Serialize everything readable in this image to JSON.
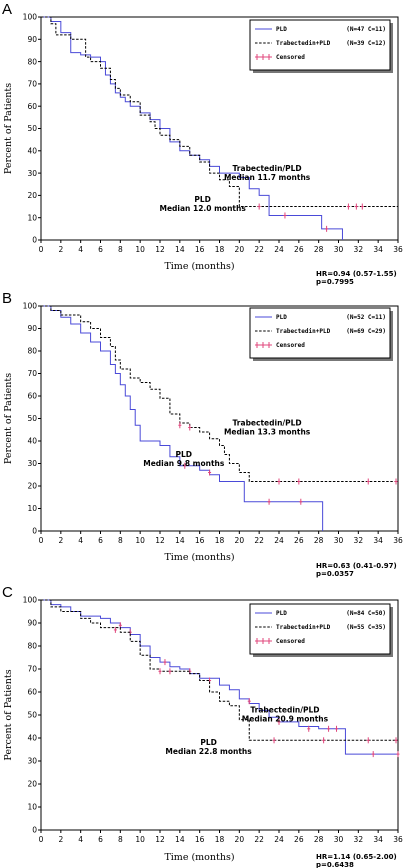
{
  "chart_data": [
    {
      "type": "line",
      "panel_label": "A",
      "xlabel": "Time (months)",
      "ylabel": "Percent of Patients",
      "xlim": [
        0,
        36
      ],
      "ylim": [
        0,
        100
      ],
      "xticks": [
        0,
        2,
        4,
        6,
        8,
        10,
        12,
        14,
        16,
        18,
        20,
        22,
        24,
        26,
        28,
        30,
        32,
        34,
        36
      ],
      "yticks": [
        0,
        10,
        20,
        30,
        40,
        50,
        60,
        70,
        80,
        90,
        100
      ],
      "legend": {
        "position": "top-right",
        "entries": [
          {
            "label": "PLD",
            "counts": "(N=47 C=11)"
          },
          {
            "label": "Trabectedin+PLD",
            "counts": "(N=39 C=12)"
          },
          {
            "label": "Censored",
            "counts": ""
          }
        ]
      },
      "annotations": [
        {
          "lines": [
            "Trabectedin/PLD",
            "Median 11.7 months"
          ],
          "x": 22.8,
          "y": 31
        },
        {
          "lines": [
            "PLD",
            "Median 12.0 months"
          ],
          "x": 16.3,
          "y": 17
        }
      ],
      "stats": [
        "HR=0.94 (0.57-1.55)",
        "p=0.7995"
      ],
      "series": [
        {
          "name": "PLD",
          "color": "#4a4ad8",
          "dash": false,
          "x": [
            0,
            1,
            2,
            3,
            4,
            5,
            6,
            6.5,
            7,
            7.5,
            8,
            8.5,
            9,
            10,
            11,
            12,
            13,
            14,
            15,
            16,
            17,
            18,
            20,
            21,
            22,
            23,
            26,
            28.3,
            30.4
          ],
          "y": [
            100,
            98,
            93,
            84,
            83,
            82,
            80,
            74,
            70,
            66,
            64,
            62,
            60,
            57,
            54,
            50,
            44,
            40,
            38,
            36,
            33,
            30,
            28,
            23,
            20,
            11,
            11,
            5,
            0
          ],
          "censors": [
            [
              24.6,
              11
            ],
            [
              28.8,
              5
            ]
          ]
        },
        {
          "name": "Trabectedin+PLD",
          "color": "#000000",
          "dash": true,
          "x": [
            0,
            1,
            1.5,
            3,
            4.5,
            5,
            6,
            7,
            7.5,
            8,
            9,
            10,
            11,
            11.5,
            12,
            13,
            14,
            15,
            16,
            17,
            18,
            19,
            20,
            36
          ],
          "y": [
            100,
            97,
            92,
            90,
            82,
            80,
            77,
            72,
            68,
            65,
            62,
            56,
            53,
            50,
            47,
            45,
            42,
            38,
            35,
            30,
            27,
            24,
            15,
            15
          ],
          "censors": [
            [
              22,
              15
            ],
            [
              31,
              15
            ],
            [
              31.8,
              15
            ],
            [
              32.4,
              15
            ]
          ]
        }
      ]
    },
    {
      "type": "line",
      "panel_label": "B",
      "xlabel": "Time (months)",
      "ylabel": "Percent of Patients",
      "xlim": [
        0,
        36
      ],
      "ylim": [
        0,
        100
      ],
      "xticks": [
        0,
        2,
        4,
        6,
        8,
        10,
        12,
        14,
        16,
        18,
        20,
        22,
        24,
        26,
        28,
        30,
        32,
        34,
        36
      ],
      "yticks": [
        0,
        10,
        20,
        30,
        40,
        50,
        60,
        70,
        80,
        90,
        100
      ],
      "legend": {
        "position": "top-right",
        "entries": [
          {
            "label": "PLD",
            "counts": "(N=52 C=11)"
          },
          {
            "label": "Trabectedin+PLD",
            "counts": "(N=69 C=29)"
          },
          {
            "label": "Censored",
            "counts": ""
          }
        ]
      },
      "annotations": [
        {
          "lines": [
            "Trabectedin/PLD",
            "Median 13.3 months"
          ],
          "x": 22.8,
          "y": 47
        },
        {
          "lines": [
            "PLD",
            "Median 9.8 months"
          ],
          "x": 14.4,
          "y": 33
        }
      ],
      "stats": [
        "HR=0.63 (0.41-0.97)",
        "p=0.0357"
      ],
      "series": [
        {
          "name": "PLD",
          "color": "#4a4ad8",
          "dash": false,
          "x": [
            0,
            1,
            2,
            3,
            4,
            5,
            6,
            7,
            7.5,
            8,
            8.5,
            9,
            9.5,
            10,
            12,
            13,
            14,
            16,
            17,
            18,
            20,
            20.5,
            28.2,
            28.4
          ],
          "y": [
            100,
            98,
            95,
            92,
            88,
            84,
            80,
            74,
            70,
            65,
            60,
            54,
            47,
            40,
            38,
            33,
            29,
            27,
            25,
            22,
            22,
            13,
            13,
            0
          ],
          "censors": [
            [
              14.5,
              29
            ],
            [
              17,
              26
            ],
            [
              23,
              13
            ],
            [
              26.2,
              13
            ]
          ]
        },
        {
          "name": "Trabectedin+PLD",
          "color": "#000000",
          "dash": true,
          "x": [
            0,
            1,
            2,
            4,
            5,
            6,
            7,
            7.5,
            8,
            9,
            10,
            11,
            12,
            13,
            14,
            15,
            16,
            17,
            18,
            18.5,
            19,
            20,
            21,
            36
          ],
          "y": [
            100,
            98,
            96,
            93,
            90,
            86,
            82,
            76,
            72,
            68,
            66,
            63,
            59,
            52,
            48,
            46,
            44,
            41,
            38,
            34,
            30,
            26,
            22,
            22
          ],
          "censors": [
            [
              14,
              47
            ],
            [
              15,
              46
            ],
            [
              24,
              22
            ],
            [
              26,
              22
            ],
            [
              33,
              22
            ],
            [
              35.8,
              22
            ]
          ]
        }
      ]
    },
    {
      "type": "line",
      "panel_label": "C",
      "xlabel": "Time (months)",
      "ylabel": "Percent of Patients",
      "xlim": [
        0,
        36
      ],
      "ylim": [
        0,
        100
      ],
      "xticks": [
        0,
        2,
        4,
        6,
        8,
        10,
        12,
        14,
        16,
        18,
        20,
        22,
        24,
        26,
        28,
        30,
        32,
        34,
        36
      ],
      "yticks": [
        0,
        10,
        20,
        30,
        40,
        50,
        60,
        70,
        80,
        90,
        100
      ],
      "legend": {
        "position": "top-right",
        "entries": [
          {
            "label": "PLD",
            "counts": "(N=84 C=50)"
          },
          {
            "label": "Trabectedin+PLD",
            "counts": "(N=55 C=35)"
          },
          {
            "label": "Censored",
            "counts": ""
          }
        ]
      },
      "annotations": [
        {
          "lines": [
            "Trabectedin/PLD",
            "Median 20.9 months"
          ],
          "x": 24.6,
          "y": 51
        },
        {
          "lines": [
            "PLD",
            "Median 22.8 months"
          ],
          "x": 16.9,
          "y": 37
        }
      ],
      "stats": [
        "HR=1.14 (0.65-2.00)",
        "p=0.6438"
      ],
      "series": [
        {
          "name": "PLD",
          "color": "#4a4ad8",
          "dash": false,
          "x": [
            0,
            1,
            2,
            3,
            4,
            6,
            7,
            8,
            9,
            10,
            11,
            12,
            13,
            14,
            15,
            16,
            18,
            19,
            20,
            21,
            22,
            23,
            24,
            26,
            28,
            30,
            30.7,
            36
          ],
          "y": [
            100,
            98,
            97,
            95,
            93,
            92,
            90,
            88,
            85,
            80,
            75,
            73,
            71,
            70,
            68,
            66,
            63,
            61,
            57,
            55,
            52,
            49,
            47,
            45,
            44,
            44,
            33,
            33
          ],
          "censors": [
            [
              8,
              89
            ],
            [
              9,
              86
            ],
            [
              12.5,
              73
            ],
            [
              15,
              69
            ],
            [
              17,
              65
            ],
            [
              21,
              56
            ],
            [
              24,
              47
            ],
            [
              27,
              44
            ],
            [
              29,
              44
            ],
            [
              29.8,
              44
            ],
            [
              33.5,
              33
            ],
            [
              36,
              33
            ]
          ]
        },
        {
          "name": "Trabectedin+PLD",
          "color": "#000000",
          "dash": true,
          "x": [
            0,
            1,
            2,
            4,
            5,
            6,
            8,
            9,
            10,
            11,
            12,
            13,
            14,
            15,
            16,
            17,
            18,
            19,
            20,
            21,
            36
          ],
          "y": [
            100,
            97,
            95,
            92,
            90,
            88,
            86,
            82,
            76,
            70,
            69,
            69,
            69,
            68,
            65,
            60,
            56,
            54,
            48,
            39,
            39
          ],
          "censors": [
            [
              7.5,
              87
            ],
            [
              12,
              69
            ],
            [
              13,
              69
            ],
            [
              23.5,
              39
            ],
            [
              28.5,
              39
            ],
            [
              33,
              39
            ],
            [
              35.8,
              39
            ]
          ]
        }
      ]
    }
  ]
}
